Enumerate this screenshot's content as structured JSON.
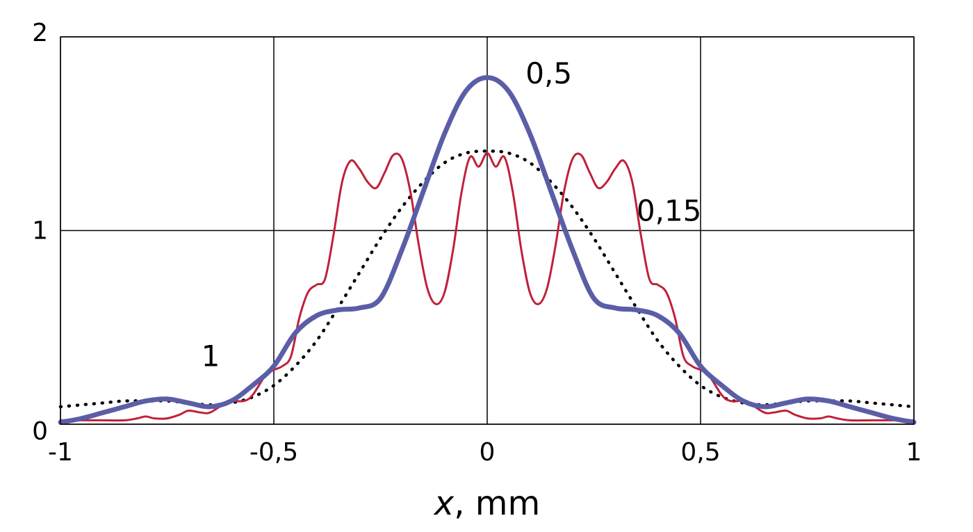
{
  "chart_data": {
    "type": "line",
    "title": "",
    "xlabel_var": "x",
    "xlabel_unit": ", mm",
    "ylabel": "",
    "xlim": [
      -1,
      1
    ],
    "ylim": [
      0,
      2
    ],
    "grid": true,
    "x_ticks": [
      {
        "value": -1,
        "label": "-1"
      },
      {
        "value": -0.5,
        "label": "-0,5"
      },
      {
        "value": 0,
        "label": "0"
      },
      {
        "value": 0.5,
        "label": "0,5"
      },
      {
        "value": 1,
        "label": "1"
      }
    ],
    "y_ticks": [
      {
        "value": 0,
        "label": "0"
      },
      {
        "value": 1,
        "label": "1"
      },
      {
        "value": 2,
        "label": "2"
      }
    ],
    "series": [
      {
        "name": "0,15",
        "color": "#c0203a",
        "style": "solid-thin",
        "x": [
          -1,
          -0.95,
          -0.9,
          -0.85,
          -0.82,
          -0.8,
          -0.78,
          -0.75,
          -0.72,
          -0.7,
          -0.67,
          -0.65,
          -0.62,
          -0.6,
          -0.57,
          -0.55,
          -0.52,
          -0.5,
          -0.48,
          -0.46,
          -0.44,
          -0.42,
          -0.4,
          -0.38,
          -0.36,
          -0.34,
          -0.32,
          -0.3,
          -0.28,
          -0.26,
          -0.24,
          -0.22,
          -0.2,
          -0.18,
          -0.16,
          -0.14,
          -0.12,
          -0.1,
          -0.08,
          -0.06,
          -0.04,
          -0.02,
          0,
          0.02,
          0.04,
          0.06,
          0.08,
          0.1,
          0.12,
          0.14,
          0.16,
          0.18,
          0.2,
          0.22,
          0.24,
          0.26,
          0.28,
          0.3,
          0.32,
          0.34,
          0.36,
          0.38,
          0.4,
          0.42,
          0.44,
          0.46,
          0.48,
          0.5,
          0.52,
          0.55,
          0.57,
          0.6,
          0.62,
          0.65,
          0.67,
          0.7,
          0.72,
          0.75,
          0.78,
          0.8,
          0.82,
          0.85,
          0.9,
          0.95,
          1
        ],
        "y": [
          0.02,
          0.02,
          0.02,
          0.02,
          0.03,
          0.04,
          0.03,
          0.03,
          0.05,
          0.07,
          0.06,
          0.06,
          0.1,
          0.12,
          0.12,
          0.15,
          0.25,
          0.28,
          0.3,
          0.35,
          0.55,
          0.68,
          0.72,
          0.75,
          0.98,
          1.25,
          1.36,
          1.32,
          1.25,
          1.22,
          1.3,
          1.39,
          1.37,
          1.2,
          0.92,
          0.7,
          0.62,
          0.68,
          0.9,
          1.2,
          1.38,
          1.33,
          1.4,
          1.33,
          1.38,
          1.2,
          0.9,
          0.68,
          0.62,
          0.7,
          0.92,
          1.2,
          1.37,
          1.39,
          1.3,
          1.22,
          1.25,
          1.32,
          1.36,
          1.25,
          0.98,
          0.75,
          0.72,
          0.68,
          0.55,
          0.35,
          0.3,
          0.28,
          0.25,
          0.15,
          0.12,
          0.12,
          0.1,
          0.06,
          0.06,
          0.07,
          0.05,
          0.03,
          0.03,
          0.04,
          0.03,
          0.02,
          0.02,
          0.02,
          0.02
        ]
      },
      {
        "name": "0,5",
        "color": "#5b5ea6",
        "style": "solid-thick",
        "x": [
          -1,
          -0.95,
          -0.9,
          -0.85,
          -0.8,
          -0.75,
          -0.7,
          -0.65,
          -0.6,
          -0.55,
          -0.5,
          -0.45,
          -0.4,
          -0.35,
          -0.3,
          -0.25,
          -0.2,
          -0.15,
          -0.1,
          -0.05,
          0,
          0.05,
          0.1,
          0.15,
          0.2,
          0.25,
          0.3,
          0.35,
          0.4,
          0.45,
          0.5,
          0.55,
          0.6,
          0.65,
          0.7,
          0.75,
          0.8,
          0.85,
          0.9,
          0.95,
          1
        ],
        "y": [
          0.01,
          0.03,
          0.06,
          0.09,
          0.12,
          0.13,
          0.11,
          0.09,
          0.12,
          0.2,
          0.3,
          0.47,
          0.56,
          0.59,
          0.6,
          0.65,
          0.9,
          1.2,
          1.5,
          1.72,
          1.79,
          1.72,
          1.5,
          1.2,
          0.9,
          0.65,
          0.6,
          0.59,
          0.56,
          0.47,
          0.3,
          0.2,
          0.12,
          0.09,
          0.11,
          0.13,
          0.12,
          0.09,
          0.06,
          0.03,
          0.01
        ]
      },
      {
        "name": "1",
        "color": "#000000",
        "style": "dotted",
        "x": [
          -1,
          -0.95,
          -0.9,
          -0.85,
          -0.8,
          -0.75,
          -0.7,
          -0.65,
          -0.6,
          -0.55,
          -0.5,
          -0.45,
          -0.4,
          -0.35,
          -0.3,
          -0.25,
          -0.2,
          -0.15,
          -0.1,
          -0.05,
          0,
          0.05,
          0.1,
          0.15,
          0.2,
          0.25,
          0.3,
          0.35,
          0.4,
          0.45,
          0.5,
          0.55,
          0.6,
          0.65,
          0.7,
          0.75,
          0.8,
          0.85,
          0.9,
          0.95,
          1
        ],
        "y": [
          0.09,
          0.1,
          0.11,
          0.12,
          0.12,
          0.12,
          0.11,
          0.1,
          0.11,
          0.14,
          0.2,
          0.3,
          0.43,
          0.6,
          0.78,
          0.96,
          1.12,
          1.25,
          1.35,
          1.4,
          1.41,
          1.4,
          1.35,
          1.25,
          1.12,
          0.96,
          0.78,
          0.6,
          0.43,
          0.3,
          0.2,
          0.14,
          0.11,
          0.1,
          0.11,
          0.12,
          0.12,
          0.12,
          0.11,
          0.1,
          0.09
        ]
      }
    ],
    "annotations": [
      {
        "text": "0,5",
        "series": "0,5",
        "x": 0.09,
        "y": 1.81
      },
      {
        "text": "0,15",
        "series": "0,15",
        "x": 0.35,
        "y": 1.1
      },
      {
        "text": "1",
        "series": "1",
        "x": -0.67,
        "y": 0.35
      }
    ]
  }
}
